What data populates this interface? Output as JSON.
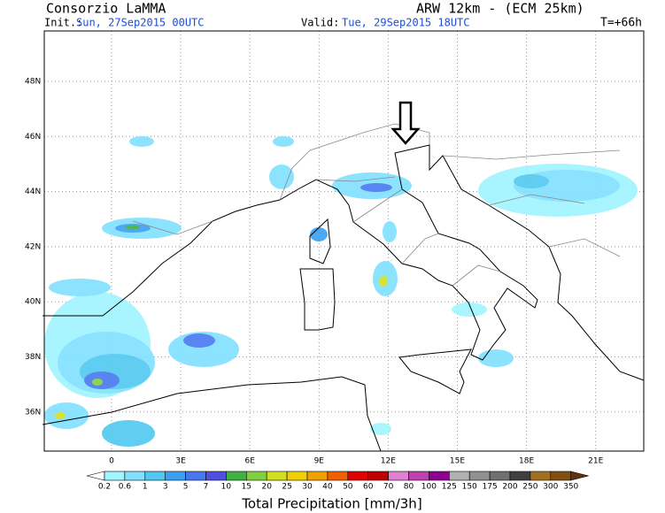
{
  "header": {
    "title": "Consorzio LaMMA",
    "model": "ARW 12km - (ECM 25km)",
    "init_label": "Init.:",
    "init": "Sun, 27Sep2015 00UTC",
    "valid_label": "Valid:",
    "valid": "Tue, 29Sep2015 18UTC",
    "lead": "T=+66h"
  },
  "map": {
    "lat_labels": [
      "48N",
      "46N",
      "44N",
      "42N",
      "40N",
      "38N",
      "36N"
    ],
    "lon_labels": [
      "0",
      "3E",
      "6E",
      "9E",
      "12E",
      "15E",
      "18E",
      "21E"
    ]
  },
  "colorbar": {
    "labels": [
      "0.2",
      "0.6",
      "1",
      "3",
      "5",
      "7",
      "10",
      "15",
      "20",
      "25",
      "30",
      "40",
      "50",
      "60",
      "70",
      "80",
      "100",
      "125",
      "150",
      "175",
      "200",
      "250",
      "300",
      "350"
    ],
    "colors": [
      "#ffffff",
      "#a0f5ff",
      "#80e0ff",
      "#50c8f0",
      "#3aa0f0",
      "#4878f0",
      "#5050e0",
      "#40b040",
      "#80d040",
      "#d0e020",
      "#f0d000",
      "#f0a000",
      "#f06000",
      "#e00000",
      "#c00000",
      "#e080d0",
      "#c040b0",
      "#900090",
      "#b0b0b0",
      "#909090",
      "#707070",
      "#404040",
      "#a07020",
      "#805010",
      "#603010"
    ],
    "caption": "Total Precipitation [mm/3h]"
  }
}
